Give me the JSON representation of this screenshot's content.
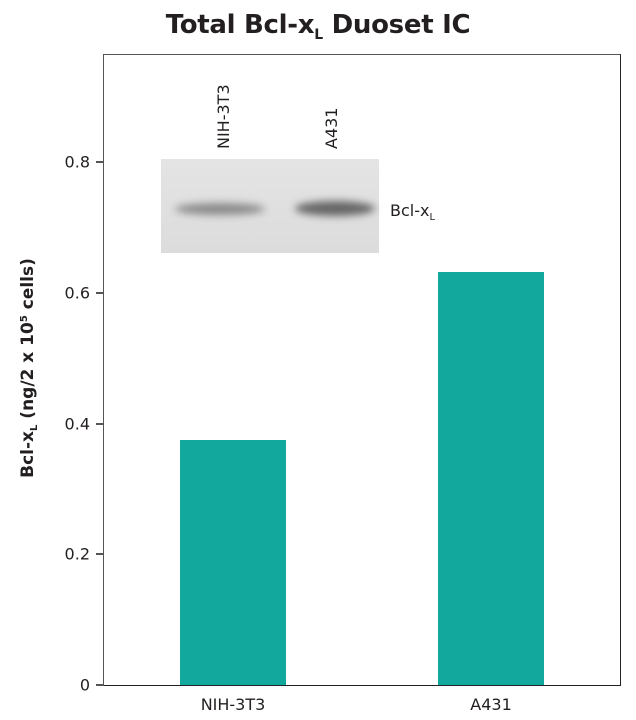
{
  "title": {
    "main": "Total Bcl-x",
    "sub": "L",
    "rest": " Duoset IC"
  },
  "y_axis": {
    "label_main": "Bcl-x",
    "label_sub": "L",
    "label_mid": " (ng/2 x 10",
    "label_sup": "5",
    "label_end": " cells)"
  },
  "ticks": [
    "0",
    "0.2",
    "0.4",
    "0.6",
    "0.8"
  ],
  "x_labels": [
    "NIH-3T3",
    "A431"
  ],
  "inset": {
    "lanes": [
      "NIH-3T3",
      "A431"
    ],
    "band_label_main": "Bcl-x",
    "band_label_sub": "L"
  },
  "colors": {
    "bar": "#13a89e"
  },
  "chart_data": {
    "type": "bar",
    "title": "Total Bcl-xL Duoset IC",
    "xlabel": "",
    "ylabel": "Bcl-xL (ng/2 x 10^5 cells)",
    "categories": [
      "NIH-3T3",
      "A431"
    ],
    "values": [
      0.375,
      0.632
    ],
    "ylim": [
      0,
      0.96
    ],
    "yticks": [
      0,
      0.2,
      0.4,
      0.6,
      0.8
    ],
    "grid": false,
    "legend": null,
    "annotations": [
      "Western blot inset: lanes NIH-3T3 and A431, band labeled Bcl-xL"
    ]
  }
}
